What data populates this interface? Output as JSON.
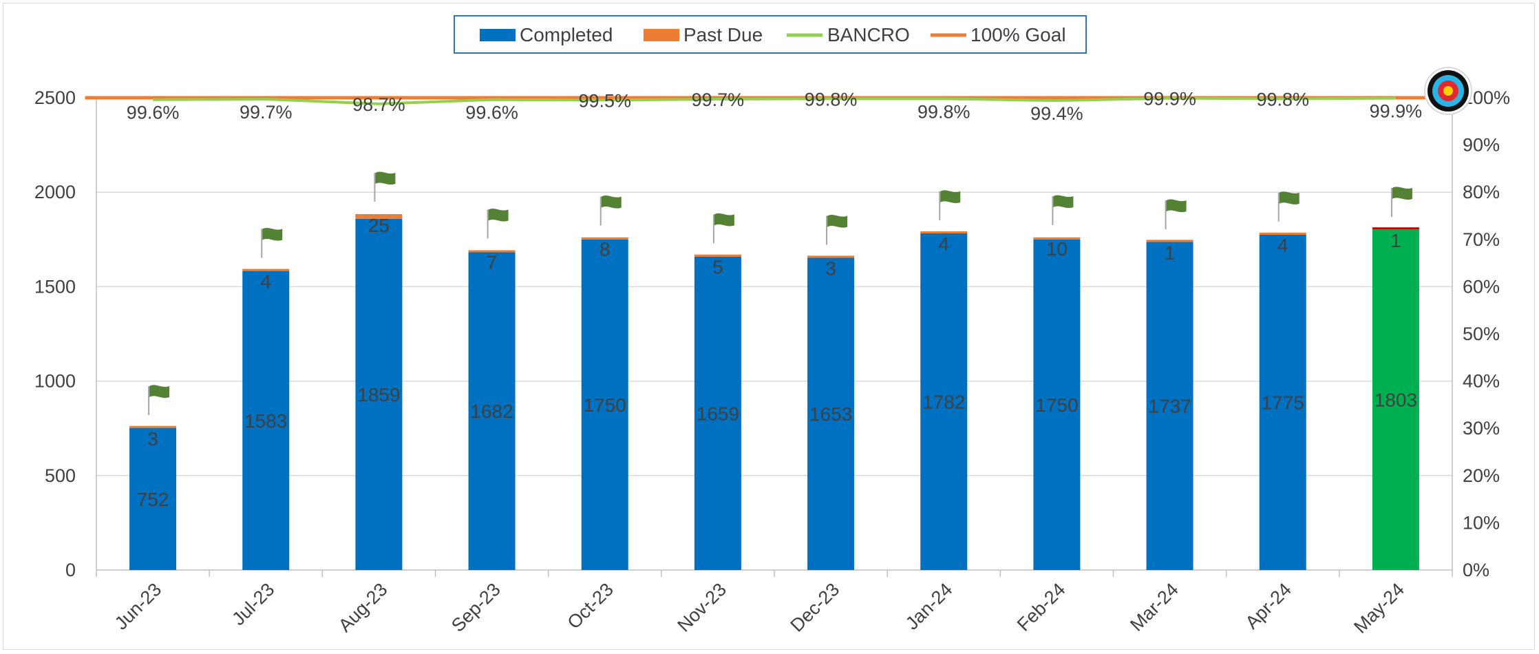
{
  "chart_data": {
    "type": "bar",
    "categories": [
      "Jun-23",
      "Jul-23",
      "Aug-23",
      "Sep-23",
      "Oct-23",
      "Nov-23",
      "Dec-23",
      "Jan-24",
      "Feb-24",
      "Mar-24",
      "Apr-24",
      "May-24"
    ],
    "series": [
      {
        "name": "Completed",
        "type": "bar",
        "stack": "total",
        "color": "#0070c0",
        "values": [
          752,
          1583,
          1859,
          1682,
          1750,
          1659,
          1653,
          1782,
          1750,
          1737,
          1775,
          1803
        ]
      },
      {
        "name": "Past Due",
        "type": "bar",
        "stack": "total",
        "color": "#ed7d31",
        "values": [
          3,
          4,
          25,
          7,
          8,
          5,
          3,
          4,
          10,
          1,
          4,
          1
        ]
      },
      {
        "name": "BANCRO",
        "type": "line",
        "axis": "right",
        "color": "#92d050",
        "values": [
          99.6,
          99.7,
          98.7,
          99.6,
          99.5,
          99.7,
          99.8,
          99.8,
          99.4,
          99.9,
          99.8,
          99.9
        ]
      },
      {
        "name": "100% Goal",
        "type": "line",
        "axis": "right",
        "color": "#ed7d31",
        "values": [
          100,
          100,
          100,
          100,
          100,
          100,
          100,
          100,
          100,
          100,
          100,
          100
        ]
      }
    ],
    "pct_labels": [
      "99.6%",
      "99.7%",
      "98.7%",
      "99.6%",
      "99.5%",
      "99.7%",
      "99.8%",
      "99.8%",
      "99.4%",
      "99.9%",
      "99.8%",
      "99.9%"
    ],
    "highlight": {
      "category": "May-24",
      "completed_color": "#00b050",
      "past_due_color": "#c00000"
    },
    "y_left": {
      "min": 0,
      "max": 2500,
      "ticks": [
        0,
        500,
        1000,
        1500,
        2000,
        2500
      ]
    },
    "y_right": {
      "min": 0,
      "max": 100,
      "ticks": [
        "0%",
        "10%",
        "20%",
        "30%",
        "40%",
        "50%",
        "60%",
        "70%",
        "80%",
        "90%",
        "100%"
      ]
    },
    "legend_position": "top-center",
    "grid": "horizontal",
    "markers": {
      "bar_top": "flag-icon",
      "goal": "target-icon"
    }
  }
}
